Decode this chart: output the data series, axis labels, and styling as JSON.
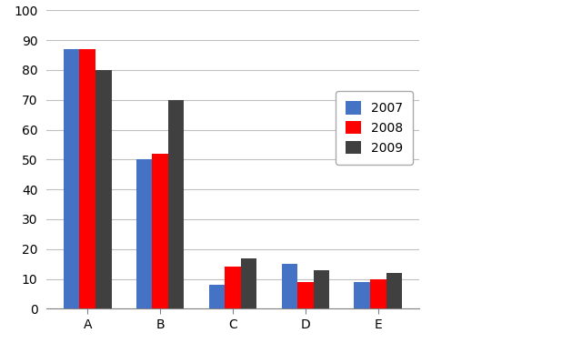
{
  "categories": [
    "A",
    "B",
    "C",
    "D",
    "E"
  ],
  "years": [
    "2007",
    "2008",
    "2009"
  ],
  "values": {
    "2007": [
      87,
      50,
      8,
      15,
      9
    ],
    "2008": [
      87,
      52,
      14,
      9,
      10
    ],
    "2009": [
      80,
      70,
      17,
      13,
      12
    ]
  },
  "bar_colors": {
    "2007": "#4472C4",
    "2008": "#FF0000",
    "2009": "#404040"
  },
  "ylim": [
    0,
    100
  ],
  "yticks": [
    0,
    10,
    20,
    30,
    40,
    50,
    60,
    70,
    80,
    90,
    100
  ],
  "background_color": "#FFFFFF",
  "grid_color": "#C0C0C0",
  "bar_width": 0.22
}
